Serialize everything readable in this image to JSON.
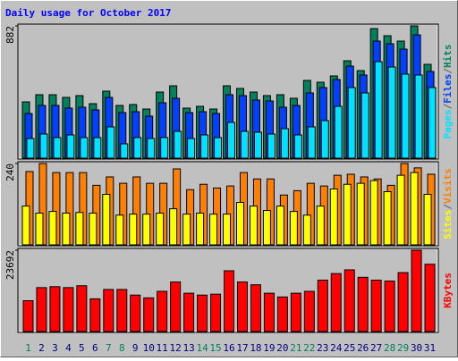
{
  "chart_data": [
    {
      "type": "bar",
      "title": "Daily usage for October 2017",
      "categories": [
        "1",
        "2",
        "3",
        "4",
        "5",
        "6",
        "7",
        "8",
        "9",
        "10",
        "11",
        "12",
        "13",
        "14",
        "15",
        "16",
        "17",
        "18",
        "19",
        "20",
        "21",
        "22",
        "23",
        "24",
        "25",
        "26",
        "27",
        "28",
        "29",
        "30",
        "31"
      ],
      "label_colors": [
        "#00805c",
        "#000080",
        "#000080",
        "#000080",
        "#000080",
        "#000080",
        "#00805c",
        "#00805c",
        "#000080",
        "#000080",
        "#000080",
        "#000080",
        "#000080",
        "#00805c",
        "#00805c",
        "#000080",
        "#000080",
        "#000080",
        "#000080",
        "#000080",
        "#00805c",
        "#00805c",
        "#000080",
        "#000080",
        "#000080",
        "#000080",
        "#000080",
        "#00805c",
        "#00805c",
        "#000080",
        "#000080"
      ],
      "ylim": [
        0,
        882
      ],
      "yticks": [
        882
      ],
      "separator": "/",
      "series": [
        {
          "name": "Hits",
          "color": "#00805c",
          "values": [
            372,
            420,
            420,
            402,
            414,
            360,
            444,
            348,
            354,
            324,
            438,
            480,
            330,
            342,
            324,
            480,
            462,
            438,
            414,
            420,
            396,
            516,
            504,
            546,
            648,
            582,
            864,
            816,
            780,
            882,
            624
          ]
        },
        {
          "name": "Files",
          "color": "#0040ff",
          "values": [
            294,
            348,
            348,
            330,
            336,
            318,
            402,
            300,
            306,
            276,
            366,
            396,
            300,
            306,
            294,
            420,
            414,
            384,
            378,
            336,
            348,
            432,
            468,
            522,
            612,
            552,
            780,
            762,
            726,
            822,
            576
          ]
        },
        {
          "name": "Pages",
          "color": "#00e0ff",
          "values": [
            126,
            156,
            132,
            150,
            132,
            132,
            204,
            90,
            132,
            126,
            132,
            174,
            126,
            150,
            132,
            234,
            174,
            168,
            156,
            192,
            150,
            204,
            246,
            342,
            468,
            432,
            642,
            606,
            558,
            552,
            468
          ]
        }
      ]
    },
    {
      "type": "bar",
      "ylim": [
        0,
        240
      ],
      "yticks": [
        240
      ],
      "separator": "/",
      "series": [
        {
          "name": "Visits",
          "color": "#ff8000",
          "values": [
            216,
            240,
            213,
            213,
            213,
            175,
            200,
            181,
            200,
            181,
            181,
            224,
            162,
            178,
            167,
            173,
            213,
            194,
            194,
            146,
            159,
            181,
            173,
            205,
            208,
            200,
            194,
            175,
            240,
            227,
            208
          ]
        },
        {
          "name": "Sites",
          "color": "#ffff00",
          "values": [
            113,
            92,
            97,
            92,
            94,
            92,
            148,
            86,
            89,
            89,
            92,
            105,
            89,
            92,
            89,
            89,
            124,
            113,
            100,
            113,
            97,
            86,
            113,
            164,
            178,
            181,
            189,
            156,
            205,
            213,
            148
          ]
        }
      ]
    },
    {
      "type": "bar",
      "ylim": [
        0,
        23692
      ],
      "yticks": [
        23692
      ],
      "series": [
        {
          "name": "KBytes",
          "color": "#ff0000",
          "values": [
            8816,
            12672,
            12948,
            12672,
            13224,
            9367,
            12121,
            12121,
            10469,
            9642,
            11570,
            14325,
            11019,
            10469,
            10744,
            17631,
            14325,
            13499,
            11019,
            9918,
            11019,
            11570,
            14876,
            16805,
            17907,
            15703,
            14876,
            14600,
            17080,
            23692,
            19560
          ]
        }
      ]
    }
  ]
}
